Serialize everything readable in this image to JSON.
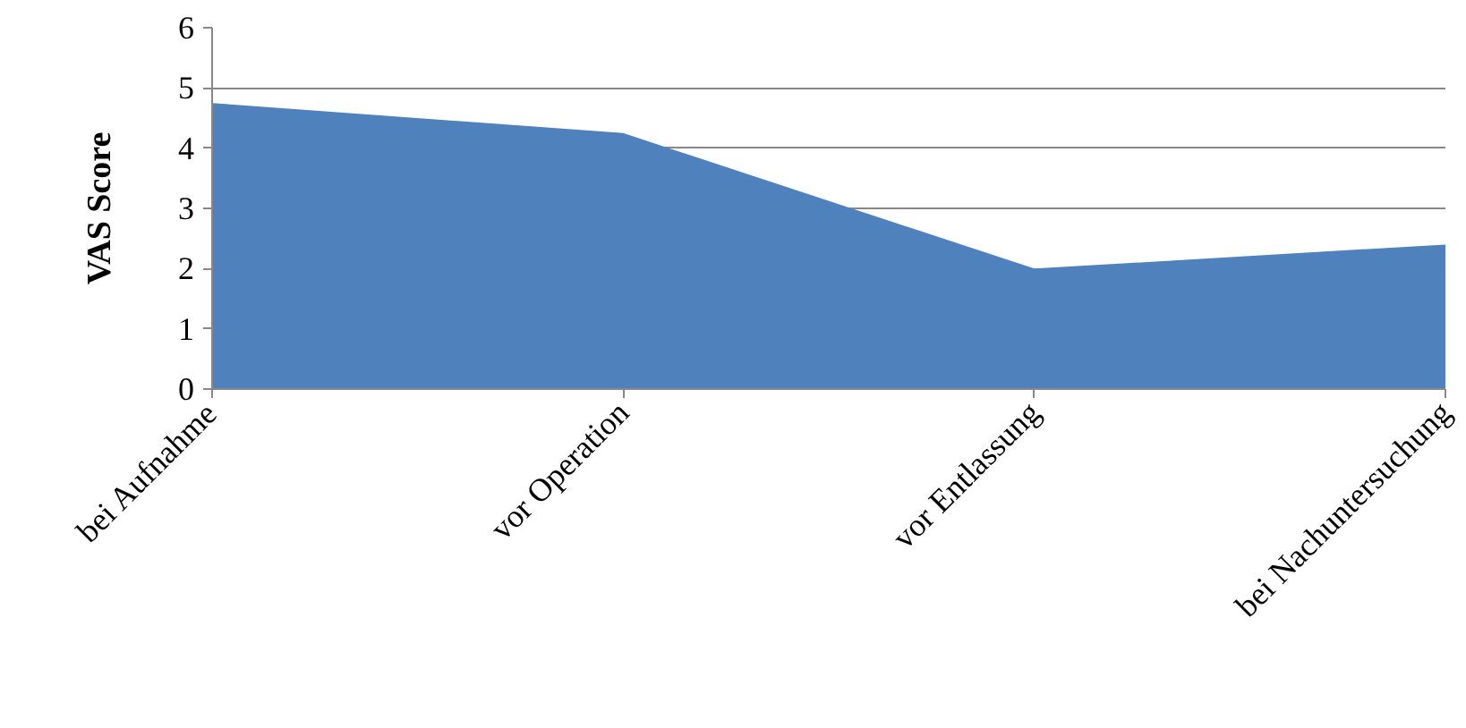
{
  "chart_data": {
    "type": "area",
    "ylabel": "VAS Score",
    "categories": [
      "bei Aufnahme",
      "vor Operation",
      "vor Entlassung",
      "bei Nachuntersuchung"
    ],
    "series": [
      {
        "color": "#4f81bd",
        "values": [
          4.75,
          4.25,
          2.0,
          2.4
        ]
      }
    ],
    "ylim": [
      0,
      6
    ],
    "yticks": [
      0,
      1,
      2,
      3,
      4,
      5,
      6
    ],
    "grid": "y"
  }
}
